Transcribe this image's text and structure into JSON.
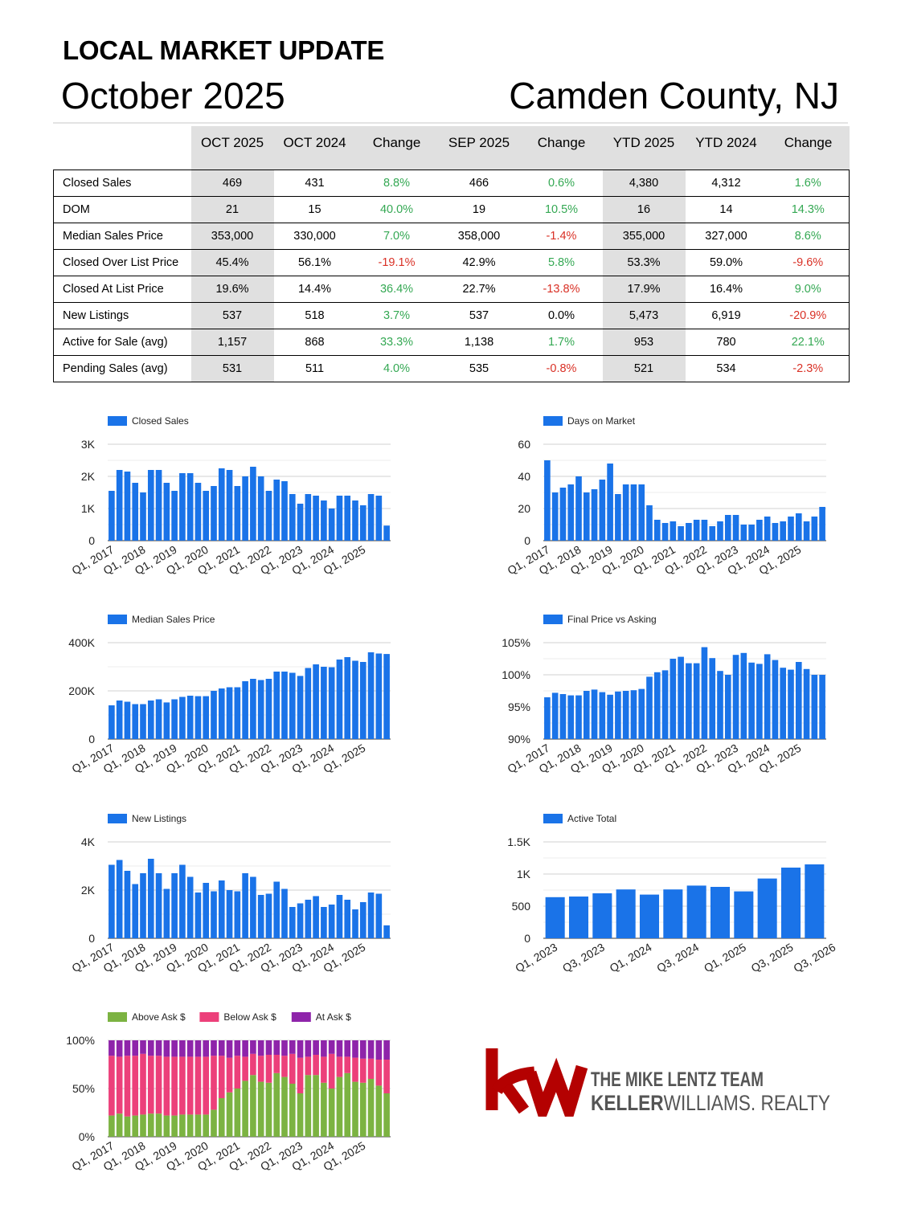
{
  "header": {
    "title": "LOCAL MARKET UPDATE",
    "month": "October 2025",
    "county": "Camden County, NJ"
  },
  "table": {
    "columns": [
      "OCT 2025",
      "OCT 2024",
      "Change",
      "SEP 2025",
      "Change",
      "YTD 2025",
      "YTD 2024",
      "Change"
    ],
    "rows": [
      {
        "label": "Closed Sales",
        "values": [
          "469",
          "431",
          "8.8%",
          "466",
          "0.6%",
          "4,380",
          "4,312",
          "1.6%"
        ]
      },
      {
        "label": "DOM",
        "values": [
          "21",
          "15",
          "40.0%",
          "19",
          "10.5%",
          "16",
          "14",
          "14.3%"
        ]
      },
      {
        "label": "Median Sales Price",
        "values": [
          "353,000",
          "330,000",
          "7.0%",
          "358,000",
          "-1.4%",
          "355,000",
          "327,000",
          "8.6%"
        ]
      },
      {
        "label": "Closed Over List Price",
        "values": [
          "45.4%",
          "56.1%",
          "-19.1%",
          "42.9%",
          "5.8%",
          "53.3%",
          "59.0%",
          "-9.6%"
        ]
      },
      {
        "label": "Closed At List Price",
        "values": [
          "19.6%",
          "14.4%",
          "36.4%",
          "22.7%",
          "-13.8%",
          "17.9%",
          "16.4%",
          "9.0%"
        ]
      },
      {
        "label": "New Listings",
        "values": [
          "537",
          "518",
          "3.7%",
          "537",
          "0.0%",
          "5,473",
          "6,919",
          "-20.9%"
        ]
      },
      {
        "label": "Active for Sale (avg)",
        "values": [
          "1,157",
          "868",
          "33.3%",
          "1,138",
          "1.7%",
          "953",
          "780",
          "22.1%"
        ]
      },
      {
        "label": "Pending Sales (avg)",
        "values": [
          "531",
          "511",
          "4.0%",
          "535",
          "-0.8%",
          "521",
          "534",
          "-2.3%"
        ]
      }
    ],
    "change_colors": {
      "positive": "#34a853",
      "negative": "#d93025",
      "neutral": "#000000"
    }
  },
  "colors": {
    "bar": "#1a73e8",
    "above_ask": "#7cb342",
    "below_ask": "#ec407a",
    "at_ask": "#8e24aa",
    "grid": "#d0d0d0",
    "kw_red": "#b40101",
    "kw_grey": "#555555"
  },
  "chart_data": [
    {
      "id": "closed-sales",
      "type": "bar",
      "legend": [
        "Closed Sales"
      ],
      "xticks": [
        "Q1, 2017",
        "Q1, 2018",
        "Q1, 2019",
        "Q1, 2020",
        "Q1, 2021",
        "Q1, 2022",
        "Q1, 2023",
        "Q1, 2024",
        "Q1, 2025"
      ],
      "yticks": [
        "0",
        "1K",
        "2K",
        "3K"
      ],
      "ylim": [
        0,
        3000
      ],
      "values": [
        1550,
        2200,
        2150,
        1800,
        1500,
        2200,
        2200,
        1800,
        1550,
        2100,
        2100,
        1800,
        1550,
        1700,
        2250,
        2200,
        1700,
        2000,
        2300,
        2000,
        1550,
        1900,
        1850,
        1450,
        1150,
        1450,
        1400,
        1250,
        1000,
        1400,
        1400,
        1250,
        1100,
        1450,
        1400,
        469
      ]
    },
    {
      "id": "days-on-market",
      "type": "bar",
      "legend": [
        "Days on Market"
      ],
      "xticks": [
        "Q1, 2017",
        "Q1, 2018",
        "Q1, 2019",
        "Q1, 2020",
        "Q1, 2021",
        "Q1, 2022",
        "Q1, 2023",
        "Q1, 2024",
        "Q1, 2025"
      ],
      "yticks": [
        "0",
        "20",
        "40",
        "60"
      ],
      "ylim": [
        0,
        60
      ],
      "values": [
        50,
        30,
        33,
        35,
        40,
        30,
        32,
        38,
        48,
        29,
        35,
        35,
        35,
        22,
        13,
        11,
        12,
        9,
        11,
        13,
        13,
        9,
        12,
        16,
        16,
        10,
        10,
        13,
        15,
        11,
        12,
        15,
        17,
        12,
        15,
        21
      ]
    },
    {
      "id": "median-sales-price",
      "type": "bar",
      "legend": [
        "Median Sales Price"
      ],
      "xticks": [
        "Q1, 2017",
        "Q1, 2018",
        "Q1, 2019",
        "Q1, 2020",
        "Q1, 2021",
        "Q1, 2022",
        "Q1, 2023",
        "Q1, 2024",
        "Q1, 2025"
      ],
      "yticks": [
        "0",
        "200K",
        "400K"
      ],
      "ylim": [
        0,
        400000
      ],
      "values": [
        140000,
        160000,
        155000,
        145000,
        145000,
        160000,
        165000,
        152000,
        165000,
        175000,
        180000,
        178000,
        178000,
        200000,
        210000,
        215000,
        215000,
        240000,
        250000,
        245000,
        250000,
        280000,
        280000,
        275000,
        262000,
        295000,
        310000,
        300000,
        298000,
        330000,
        340000,
        325000,
        320000,
        360000,
        355000,
        353000
      ]
    },
    {
      "id": "final-price-vs-asking",
      "type": "bar",
      "legend": [
        "Final Price vs Asking"
      ],
      "xticks": [
        "Q1, 2017",
        "Q1, 2018",
        "Q1, 2019",
        "Q1, 2020",
        "Q1, 2021",
        "Q1, 2022",
        "Q1, 2023",
        "Q1, 2024",
        "Q1, 2025"
      ],
      "yticks": [
        "90%",
        "95%",
        "100%",
        "105%"
      ],
      "ylim": [
        90,
        105
      ],
      "values": [
        96.5,
        97.2,
        97.0,
        96.8,
        96.8,
        97.5,
        97.7,
        97.3,
        96.9,
        97.4,
        97.5,
        97.6,
        97.8,
        99.7,
        100.4,
        100.7,
        102.5,
        102.8,
        101.8,
        101.8,
        104.3,
        102.6,
        100.6,
        100.0,
        103.1,
        103.4,
        101.9,
        101.7,
        103.2,
        102.3,
        101.1,
        100.8,
        102.0,
        100.9,
        100.0,
        100.0
      ]
    },
    {
      "id": "new-listings",
      "type": "bar",
      "legend": [
        "New Listings"
      ],
      "xticks": [
        "Q1, 2017",
        "Q1, 2018",
        "Q1, 2019",
        "Q1, 2020",
        "Q1, 2021",
        "Q1, 2022",
        "Q1, 2023",
        "Q1, 2024",
        "Q1, 2025"
      ],
      "yticks": [
        "0",
        "2K",
        "4K"
      ],
      "ylim": [
        0,
        4000
      ],
      "values": [
        3050,
        3250,
        2800,
        2250,
        2700,
        3300,
        2700,
        2050,
        2700,
        3050,
        2550,
        1900,
        2300,
        1950,
        2400,
        2000,
        1950,
        2700,
        2550,
        1800,
        1850,
        2350,
        2050,
        1300,
        1450,
        1600,
        1750,
        1300,
        1400,
        1800,
        1600,
        1200,
        1500,
        1900,
        1850,
        537
      ]
    },
    {
      "id": "active-total",
      "type": "bar",
      "legend": [
        "Active Total"
      ],
      "xticks": [
        "Q1, 2023",
        "Q3, 2023",
        "Q1, 2024",
        "Q3, 2024",
        "Q1, 2025",
        "Q3, 2025",
        "Q3, 2026"
      ],
      "yticks": [
        "0",
        "500",
        "1K",
        "1.5K"
      ],
      "ylim": [
        0,
        1500
      ],
      "values": [
        640,
        650,
        700,
        760,
        680,
        760,
        820,
        800,
        730,
        930,
        1100,
        1150
      ]
    },
    {
      "id": "ask-breakdown",
      "type": "bar",
      "stacked": true,
      "legend": [
        "Above Ask $",
        "Below Ask $",
        "At Ask $"
      ],
      "xticks": [
        "Q1, 2017",
        "Q1, 2018",
        "Q1, 2019",
        "Q1, 2020",
        "Q1, 2021",
        "Q1, 2022",
        "Q1, 2023",
        "Q1, 2024",
        "Q1, 2025"
      ],
      "yticks": [
        "0%",
        "50%",
        "100%"
      ],
      "ylim": [
        0,
        100
      ],
      "series": [
        {
          "name": "Above Ask $",
          "values": [
            22,
            24,
            21,
            22,
            23,
            24,
            24,
            22,
            22,
            23,
            23,
            23,
            23,
            28,
            40,
            46,
            50,
            58,
            64,
            57,
            56,
            66,
            62,
            55,
            45,
            64,
            64,
            56,
            50,
            62,
            66,
            57,
            56,
            60,
            53,
            45
          ]
        },
        {
          "name": "Below Ask $",
          "values": [
            62,
            59,
            63,
            62,
            63,
            60,
            60,
            61,
            61,
            60,
            60,
            60,
            60,
            56,
            44,
            36,
            34,
            25,
            22,
            27,
            29,
            19,
            22,
            31,
            37,
            19,
            21,
            27,
            36,
            21,
            17,
            25,
            25,
            21,
            27,
            35
          ]
        },
        {
          "name": "At Ask $",
          "values": [
            16,
            17,
            16,
            16,
            14,
            16,
            16,
            17,
            17,
            17,
            17,
            17,
            17,
            16,
            16,
            18,
            16,
            17,
            14,
            16,
            15,
            15,
            16,
            14,
            18,
            17,
            15,
            17,
            14,
            17,
            17,
            18,
            19,
            19,
            20,
            20
          ]
        }
      ]
    }
  ],
  "logo": {
    "mark": "kw",
    "line1": "THE MIKE LENTZ TEAM",
    "line2a": "KELLER",
    "line2b": "WILLIAMS",
    "line2c": ". REALTY"
  }
}
